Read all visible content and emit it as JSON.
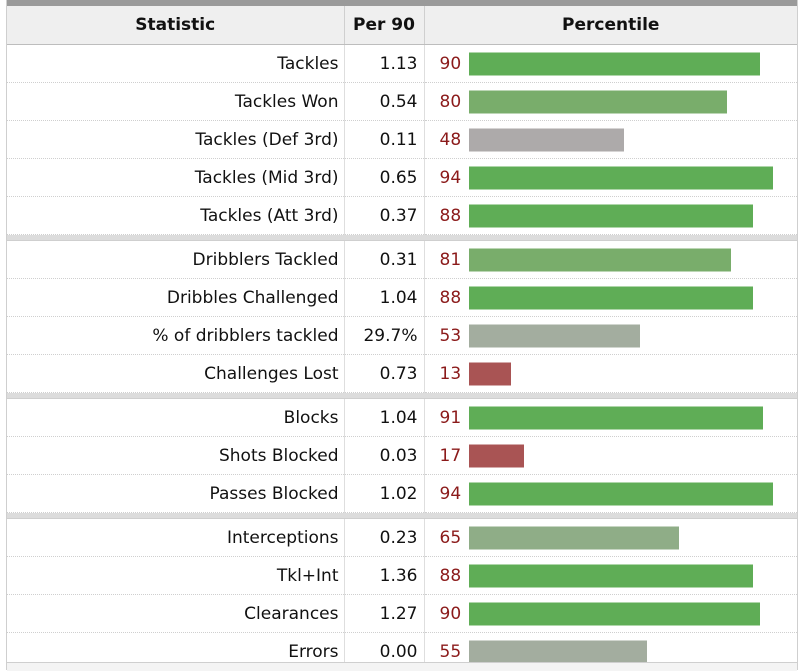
{
  "header": {
    "statistic": "Statistic",
    "per90": "Per 90",
    "percentile": "Percentile"
  },
  "colors": {
    "high": "#5fad56",
    "mid_high": "#79ad6b",
    "mid": "#a3ad9f",
    "neutral": "#adaaaa",
    "low": "#a95454",
    "percentile_text": "#8b1a1a"
  },
  "groups": [
    {
      "rows": [
        {
          "stat": "Tackles",
          "per90": "1.13",
          "pct": 90,
          "color": "#5fad56"
        },
        {
          "stat": "Tackles Won",
          "per90": "0.54",
          "pct": 80,
          "color": "#79ad6b"
        },
        {
          "stat": "Tackles (Def 3rd)",
          "per90": "0.11",
          "pct": 48,
          "color": "#adaaaa"
        },
        {
          "stat": "Tackles (Mid 3rd)",
          "per90": "0.65",
          "pct": 94,
          "color": "#5fad56"
        },
        {
          "stat": "Tackles (Att 3rd)",
          "per90": "0.37",
          "pct": 88,
          "color": "#5fad56"
        }
      ]
    },
    {
      "rows": [
        {
          "stat": "Dribblers Tackled",
          "per90": "0.31",
          "pct": 81,
          "color": "#79ad6b"
        },
        {
          "stat": "Dribbles Challenged",
          "per90": "1.04",
          "pct": 88,
          "color": "#5fad56"
        },
        {
          "stat": "% of dribblers tackled",
          "per90": "29.7%",
          "pct": 53,
          "color": "#a3ad9f"
        },
        {
          "stat": "Challenges Lost",
          "per90": "0.73",
          "pct": 13,
          "color": "#a95454"
        }
      ]
    },
    {
      "rows": [
        {
          "stat": "Blocks",
          "per90": "1.04",
          "pct": 91,
          "color": "#5fad56"
        },
        {
          "stat": "Shots Blocked",
          "per90": "0.03",
          "pct": 17,
          "color": "#a95454"
        },
        {
          "stat": "Passes Blocked",
          "per90": "1.02",
          "pct": 94,
          "color": "#5fad56"
        }
      ]
    },
    {
      "rows": [
        {
          "stat": "Interceptions",
          "per90": "0.23",
          "pct": 65,
          "color": "#8fad87"
        },
        {
          "stat": "Tkl+Int",
          "per90": "1.36",
          "pct": 88,
          "color": "#5fad56"
        },
        {
          "stat": "Clearances",
          "per90": "1.27",
          "pct": 90,
          "color": "#5fad56"
        },
        {
          "stat": "Errors",
          "per90": "0.00",
          "pct": 55,
          "color": "#a3ad9f"
        }
      ]
    }
  ]
}
